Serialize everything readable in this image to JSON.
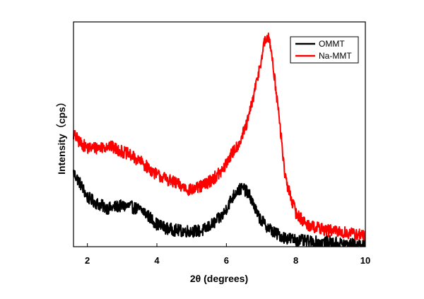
{
  "chart_data": {
    "type": "line",
    "title": "",
    "xlabel": "2θ (degrees)",
    "ylabel": "Intensity（cps）",
    "xlim": [
      1.6,
      10
    ],
    "ylim": [
      0,
      1
    ],
    "xticks": [
      "2",
      "4",
      "6",
      "8",
      "10"
    ],
    "yticks": [],
    "grid": false,
    "legend_position": "top-right",
    "series": [
      {
        "name": "OMMT",
        "color": "#000000",
        "points": [
          [
            1.6,
            0.33
          ],
          [
            1.8,
            0.28
          ],
          [
            2.0,
            0.22
          ],
          [
            2.3,
            0.19
          ],
          [
            2.6,
            0.17
          ],
          [
            2.9,
            0.18
          ],
          [
            3.2,
            0.18
          ],
          [
            3.6,
            0.16
          ],
          [
            4.0,
            0.1
          ],
          [
            4.3,
            0.08
          ],
          [
            4.7,
            0.07
          ],
          [
            5.0,
            0.07
          ],
          [
            5.3,
            0.07
          ],
          [
            5.6,
            0.1
          ],
          [
            5.9,
            0.14
          ],
          [
            6.1,
            0.2
          ],
          [
            6.3,
            0.25
          ],
          [
            6.5,
            0.26
          ],
          [
            6.7,
            0.22
          ],
          [
            6.9,
            0.14
          ],
          [
            7.1,
            0.1
          ],
          [
            7.4,
            0.06
          ],
          [
            7.7,
            0.04
          ],
          [
            8.0,
            0.03
          ],
          [
            8.5,
            0.02
          ],
          [
            9.0,
            0.02
          ],
          [
            9.5,
            0.01
          ],
          [
            10.0,
            0.01
          ]
        ]
      },
      {
        "name": "Na-MMT",
        "color": "#ff0000",
        "points": [
          [
            1.6,
            0.5
          ],
          [
            1.8,
            0.46
          ],
          [
            2.0,
            0.44
          ],
          [
            2.3,
            0.44
          ],
          [
            2.6,
            0.45
          ],
          [
            2.9,
            0.43
          ],
          [
            3.2,
            0.41
          ],
          [
            3.6,
            0.37
          ],
          [
            4.0,
            0.32
          ],
          [
            4.3,
            0.3
          ],
          [
            4.7,
            0.27
          ],
          [
            5.0,
            0.25
          ],
          [
            5.3,
            0.27
          ],
          [
            5.6,
            0.3
          ],
          [
            5.9,
            0.34
          ],
          [
            6.1,
            0.4
          ],
          [
            6.4,
            0.47
          ],
          [
            6.6,
            0.55
          ],
          [
            6.8,
            0.68
          ],
          [
            7.0,
            0.83
          ],
          [
            7.1,
            0.91
          ],
          [
            7.2,
            0.93
          ],
          [
            7.3,
            0.87
          ],
          [
            7.5,
            0.6
          ],
          [
            7.7,
            0.3
          ],
          [
            8.0,
            0.15
          ],
          [
            8.3,
            0.1
          ],
          [
            8.7,
            0.08
          ],
          [
            9.0,
            0.07
          ],
          [
            9.5,
            0.06
          ],
          [
            10.0,
            0.05
          ]
        ]
      }
    ]
  }
}
